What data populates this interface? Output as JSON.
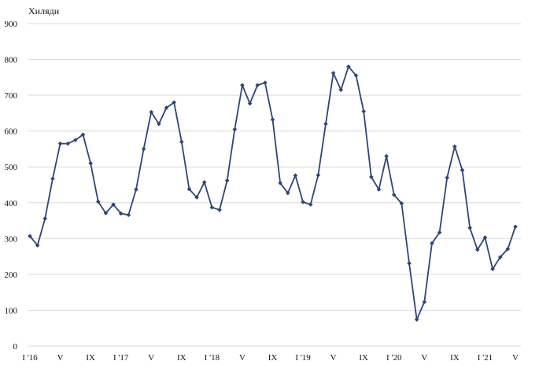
{
  "chart_data": {
    "type": "line",
    "unit_label": "Хиляди",
    "ylim": [
      0,
      900
    ],
    "yticks": [
      0,
      100,
      200,
      300,
      400,
      500,
      600,
      700,
      800,
      900
    ],
    "x_tick_labels": [
      "I '16",
      "V",
      "IX",
      "I '17",
      "V",
      "IX",
      "I '18",
      "V",
      "IX",
      "I '19",
      "V",
      "IX",
      "I '20",
      "V",
      "IX",
      "I '21",
      "V"
    ],
    "x_tick_period_months": 4,
    "grid": "horizontal",
    "legend": "none",
    "series": [
      {
        "color": "#2e4577",
        "values": [
          307,
          281,
          356,
          467,
          565,
          565,
          575,
          590,
          510,
          403,
          371,
          395,
          370,
          366,
          437,
          550,
          653,
          620,
          665,
          680,
          570,
          438,
          415,
          457,
          387,
          380,
          462,
          605,
          728,
          677,
          728,
          735,
          632,
          455,
          427,
          476,
          402,
          395,
          477,
          620,
          762,
          715,
          780,
          755,
          655,
          472,
          437,
          530,
          422,
          398,
          231,
          74,
          123,
          287,
          317,
          470,
          557,
          491,
          330,
          269,
          303,
          215,
          248,
          271,
          333
        ]
      }
    ]
  }
}
